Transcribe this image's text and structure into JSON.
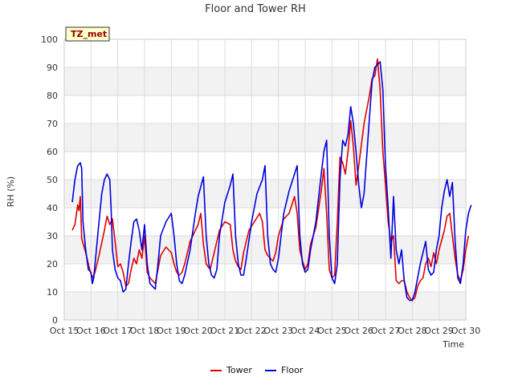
{
  "chart_data": {
    "type": "line",
    "title": "Floor and Tower RH",
    "xlabel": "Time",
    "ylabel": "RH (%)",
    "badge": "TZ_met",
    "x_tick_labels": [
      "Oct 15",
      "Oct 16",
      "Oct 17",
      "Oct 18",
      "Oct 19",
      "Oct 20",
      "Oct 21",
      "Oct 22",
      "Oct 23",
      "Oct 24",
      "Oct 25",
      "Oct 26",
      "Oct 27",
      "Oct 28",
      "Oct 29",
      "Oct 30"
    ],
    "xlim": [
      0,
      15
    ],
    "ylim": [
      0,
      100
    ],
    "y_ticks": [
      0,
      10,
      20,
      30,
      40,
      50,
      60,
      70,
      80,
      90,
      100
    ],
    "grid": true,
    "legend_position": "bottom-center",
    "series": [
      {
        "name": "Tower",
        "color": "#dd0000",
        "points": [
          [
            0.3,
            32
          ],
          [
            0.4,
            34
          ],
          [
            0.5,
            41
          ],
          [
            0.55,
            39
          ],
          [
            0.6,
            44
          ],
          [
            0.65,
            29
          ],
          [
            0.8,
            24
          ],
          [
            0.95,
            18
          ],
          [
            1.05,
            15
          ],
          [
            1.15,
            17
          ],
          [
            1.3,
            23
          ],
          [
            1.5,
            32
          ],
          [
            1.6,
            37
          ],
          [
            1.7,
            34
          ],
          [
            1.8,
            36
          ],
          [
            1.9,
            28
          ],
          [
            2.0,
            19
          ],
          [
            2.1,
            20
          ],
          [
            2.2,
            17
          ],
          [
            2.3,
            12
          ],
          [
            2.4,
            13
          ],
          [
            2.5,
            18
          ],
          [
            2.6,
            22
          ],
          [
            2.7,
            20
          ],
          [
            2.8,
            25
          ],
          [
            2.9,
            22
          ],
          [
            3.0,
            30
          ],
          [
            3.1,
            17
          ],
          [
            3.2,
            15
          ],
          [
            3.3,
            14
          ],
          [
            3.4,
            13
          ],
          [
            3.5,
            18
          ],
          [
            3.6,
            23
          ],
          [
            3.8,
            26
          ],
          [
            4.0,
            24
          ],
          [
            4.1,
            20
          ],
          [
            4.2,
            17
          ],
          [
            4.3,
            16
          ],
          [
            4.4,
            17
          ],
          [
            4.5,
            20
          ],
          [
            4.7,
            28
          ],
          [
            4.9,
            32
          ],
          [
            5.0,
            34
          ],
          [
            5.1,
            38
          ],
          [
            5.2,
            27
          ],
          [
            5.3,
            20
          ],
          [
            5.45,
            18
          ],
          [
            5.6,
            24
          ],
          [
            5.8,
            32
          ],
          [
            6.0,
            35
          ],
          [
            6.2,
            34
          ],
          [
            6.3,
            25
          ],
          [
            6.4,
            21
          ],
          [
            6.5,
            19
          ],
          [
            6.6,
            18
          ],
          [
            6.7,
            24
          ],
          [
            6.9,
            32
          ],
          [
            7.1,
            35
          ],
          [
            7.3,
            38
          ],
          [
            7.4,
            35
          ],
          [
            7.5,
            25
          ],
          [
            7.6,
            23
          ],
          [
            7.8,
            21
          ],
          [
            7.9,
            24
          ],
          [
            8.0,
            30
          ],
          [
            8.2,
            36
          ],
          [
            8.4,
            38
          ],
          [
            8.6,
            44
          ],
          [
            8.7,
            38
          ],
          [
            8.8,
            25
          ],
          [
            8.9,
            21
          ],
          [
            9.0,
            18
          ],
          [
            9.1,
            20
          ],
          [
            9.2,
            27
          ],
          [
            9.4,
            33
          ],
          [
            9.6,
            46
          ],
          [
            9.7,
            54
          ],
          [
            9.8,
            38
          ],
          [
            9.9,
            18
          ],
          [
            10.0,
            15
          ],
          [
            10.1,
            16
          ],
          [
            10.2,
            35
          ],
          [
            10.3,
            58
          ],
          [
            10.4,
            56
          ],
          [
            10.5,
            52
          ],
          [
            10.6,
            60
          ],
          [
            10.7,
            71
          ],
          [
            10.8,
            62
          ],
          [
            10.9,
            48
          ],
          [
            11.0,
            55
          ],
          [
            11.2,
            70
          ],
          [
            11.4,
            80
          ],
          [
            11.5,
            86
          ],
          [
            11.6,
            87
          ],
          [
            11.7,
            93
          ],
          [
            11.8,
            82
          ],
          [
            11.9,
            60
          ],
          [
            12.0,
            48
          ],
          [
            12.1,
            35
          ],
          [
            12.2,
            28
          ],
          [
            12.3,
            30
          ],
          [
            12.4,
            14
          ],
          [
            12.5,
            13
          ],
          [
            12.6,
            14
          ],
          [
            12.7,
            14
          ],
          [
            12.8,
            10
          ],
          [
            12.9,
            8
          ],
          [
            13.0,
            7
          ],
          [
            13.1,
            8
          ],
          [
            13.2,
            12
          ],
          [
            13.3,
            14
          ],
          [
            13.4,
            15
          ],
          [
            13.5,
            20
          ],
          [
            13.6,
            22
          ],
          [
            13.7,
            19
          ],
          [
            13.8,
            24
          ],
          [
            13.9,
            20
          ],
          [
            14.0,
            25
          ],
          [
            14.2,
            32
          ],
          [
            14.3,
            37
          ],
          [
            14.4,
            38
          ],
          [
            14.5,
            30
          ],
          [
            14.6,
            22
          ],
          [
            14.7,
            16
          ],
          [
            14.8,
            14
          ],
          [
            14.9,
            18
          ],
          [
            15.0,
            25
          ],
          [
            15.1,
            30
          ]
        ]
      },
      {
        "name": "Floor",
        "color": "#0000dd",
        "points": [
          [
            0.3,
            42
          ],
          [
            0.4,
            50
          ],
          [
            0.5,
            55
          ],
          [
            0.6,
            56
          ],
          [
            0.65,
            54
          ],
          [
            0.7,
            35
          ],
          [
            0.8,
            25
          ],
          [
            0.9,
            18
          ],
          [
            1.0,
            17
          ],
          [
            1.05,
            13
          ],
          [
            1.1,
            15
          ],
          [
            1.2,
            25
          ],
          [
            1.3,
            35
          ],
          [
            1.4,
            45
          ],
          [
            1.5,
            50
          ],
          [
            1.6,
            52
          ],
          [
            1.7,
            50
          ],
          [
            1.75,
            40
          ],
          [
            1.8,
            25
          ],
          [
            1.9,
            18
          ],
          [
            2.0,
            15
          ],
          [
            2.1,
            14
          ],
          [
            2.2,
            10
          ],
          [
            2.3,
            11
          ],
          [
            2.4,
            20
          ],
          [
            2.5,
            28
          ],
          [
            2.6,
            35
          ],
          [
            2.7,
            36
          ],
          [
            2.8,
            32
          ],
          [
            2.9,
            25
          ],
          [
            3.0,
            34
          ],
          [
            3.1,
            20
          ],
          [
            3.2,
            13
          ],
          [
            3.3,
            12
          ],
          [
            3.4,
            11
          ],
          [
            3.5,
            20
          ],
          [
            3.6,
            30
          ],
          [
            3.8,
            35
          ],
          [
            4.0,
            38
          ],
          [
            4.1,
            30
          ],
          [
            4.2,
            20
          ],
          [
            4.3,
            14
          ],
          [
            4.4,
            13
          ],
          [
            4.5,
            16
          ],
          [
            4.7,
            25
          ],
          [
            4.9,
            38
          ],
          [
            5.0,
            44
          ],
          [
            5.2,
            51
          ],
          [
            5.3,
            30
          ],
          [
            5.4,
            20
          ],
          [
            5.5,
            16
          ],
          [
            5.6,
            15
          ],
          [
            5.7,
            18
          ],
          [
            5.8,
            30
          ],
          [
            6.0,
            42
          ],
          [
            6.2,
            48
          ],
          [
            6.3,
            52
          ],
          [
            6.4,
            30
          ],
          [
            6.5,
            20
          ],
          [
            6.6,
            16
          ],
          [
            6.7,
            16
          ],
          [
            6.8,
            22
          ],
          [
            7.0,
            35
          ],
          [
            7.2,
            45
          ],
          [
            7.4,
            50
          ],
          [
            7.5,
            55
          ],
          [
            7.6,
            30
          ],
          [
            7.7,
            20
          ],
          [
            7.8,
            18
          ],
          [
            7.9,
            17
          ],
          [
            8.0,
            22
          ],
          [
            8.2,
            38
          ],
          [
            8.4,
            46
          ],
          [
            8.6,
            52
          ],
          [
            8.7,
            55
          ],
          [
            8.8,
            30
          ],
          [
            8.9,
            20
          ],
          [
            9.0,
            17
          ],
          [
            9.1,
            18
          ],
          [
            9.2,
            25
          ],
          [
            9.4,
            35
          ],
          [
            9.6,
            52
          ],
          [
            9.7,
            60
          ],
          [
            9.8,
            64
          ],
          [
            9.9,
            30
          ],
          [
            10.0,
            15
          ],
          [
            10.1,
            13
          ],
          [
            10.2,
            20
          ],
          [
            10.3,
            50
          ],
          [
            10.4,
            64
          ],
          [
            10.5,
            62
          ],
          [
            10.6,
            66
          ],
          [
            10.7,
            76
          ],
          [
            10.8,
            70
          ],
          [
            10.9,
            60
          ],
          [
            11.0,
            48
          ],
          [
            11.1,
            40
          ],
          [
            11.2,
            45
          ],
          [
            11.4,
            72
          ],
          [
            11.5,
            85
          ],
          [
            11.6,
            90
          ],
          [
            11.7,
            91
          ],
          [
            11.8,
            92
          ],
          [
            11.9,
            82
          ],
          [
            12.0,
            55
          ],
          [
            12.1,
            40
          ],
          [
            12.2,
            22
          ],
          [
            12.3,
            44
          ],
          [
            12.4,
            25
          ],
          [
            12.5,
            20
          ],
          [
            12.6,
            25
          ],
          [
            12.7,
            14
          ],
          [
            12.8,
            8
          ],
          [
            12.9,
            7
          ],
          [
            13.0,
            7
          ],
          [
            13.1,
            10
          ],
          [
            13.2,
            15
          ],
          [
            13.3,
            20
          ],
          [
            13.4,
            24
          ],
          [
            13.5,
            28
          ],
          [
            13.6,
            18
          ],
          [
            13.7,
            16
          ],
          [
            13.8,
            17
          ],
          [
            13.9,
            25
          ],
          [
            14.0,
            30
          ],
          [
            14.1,
            40
          ],
          [
            14.2,
            46
          ],
          [
            14.3,
            50
          ],
          [
            14.4,
            44
          ],
          [
            14.5,
            49
          ],
          [
            14.6,
            28
          ],
          [
            14.7,
            15
          ],
          [
            14.8,
            13
          ],
          [
            14.9,
            20
          ],
          [
            15.0,
            32
          ],
          [
            15.1,
            38
          ],
          [
            15.2,
            41
          ]
        ]
      }
    ]
  }
}
